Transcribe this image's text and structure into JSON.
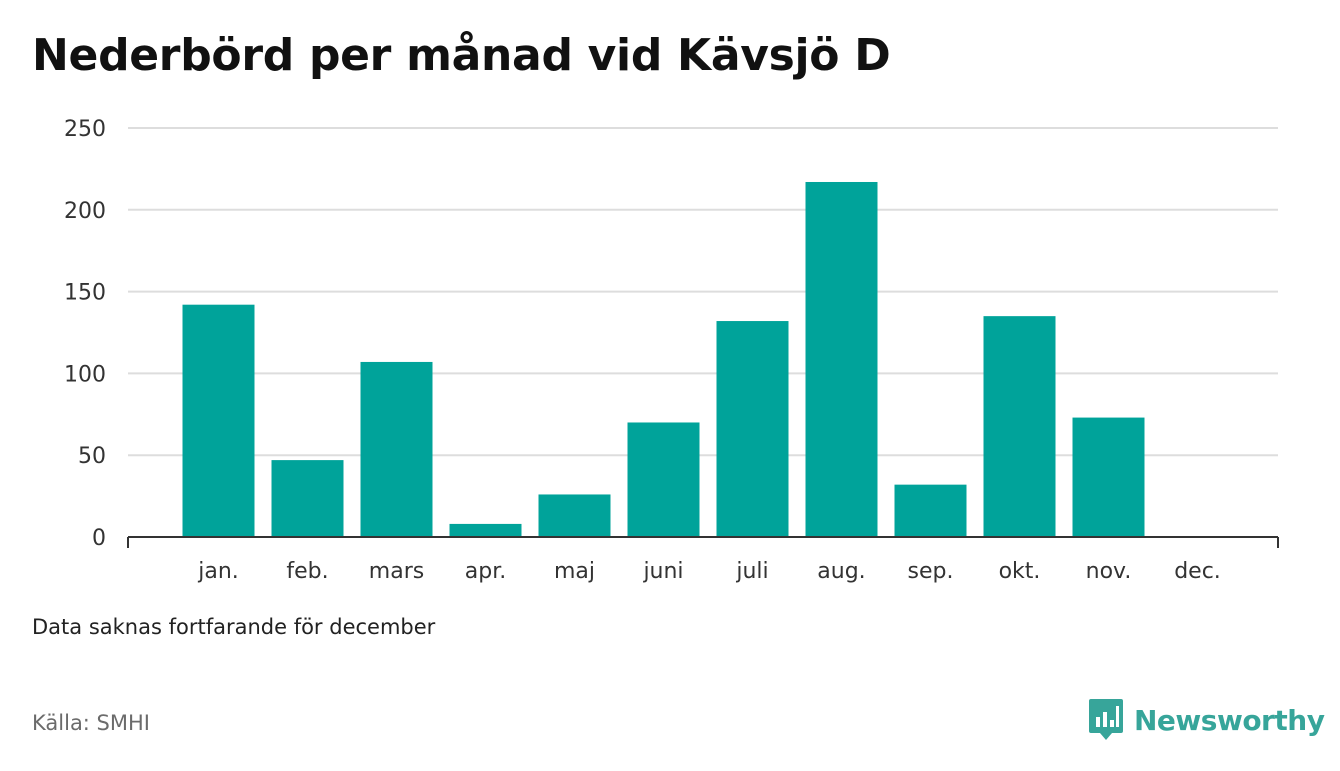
{
  "title": "Nederbörd per månad vid Kävsjö D",
  "note": "Data saknas fortfarande för december",
  "source": "Källa: SMHI",
  "brand": {
    "name": "Newsworthy",
    "icon": "bar-chart-speech-bubble-icon"
  },
  "colors": {
    "bar": "#00a39a",
    "grid": "#dddddd",
    "axis": "#333333",
    "brand": "#37a59a"
  },
  "chart_data": {
    "type": "bar",
    "title": "Nederbörd per månad vid Kävsjö D",
    "xlabel": "",
    "ylabel": "",
    "categories": [
      "jan.",
      "feb.",
      "mars",
      "apr.",
      "maj",
      "juni",
      "juli",
      "aug.",
      "sep.",
      "okt.",
      "nov.",
      "dec."
    ],
    "values": [
      142,
      47,
      107,
      8,
      26,
      70,
      132,
      217,
      32,
      135,
      73,
      null
    ],
    "ylim": [
      0,
      250
    ],
    "yticks": [
      0,
      50,
      100,
      150,
      200,
      250
    ],
    "grid": true,
    "legend": "none"
  }
}
